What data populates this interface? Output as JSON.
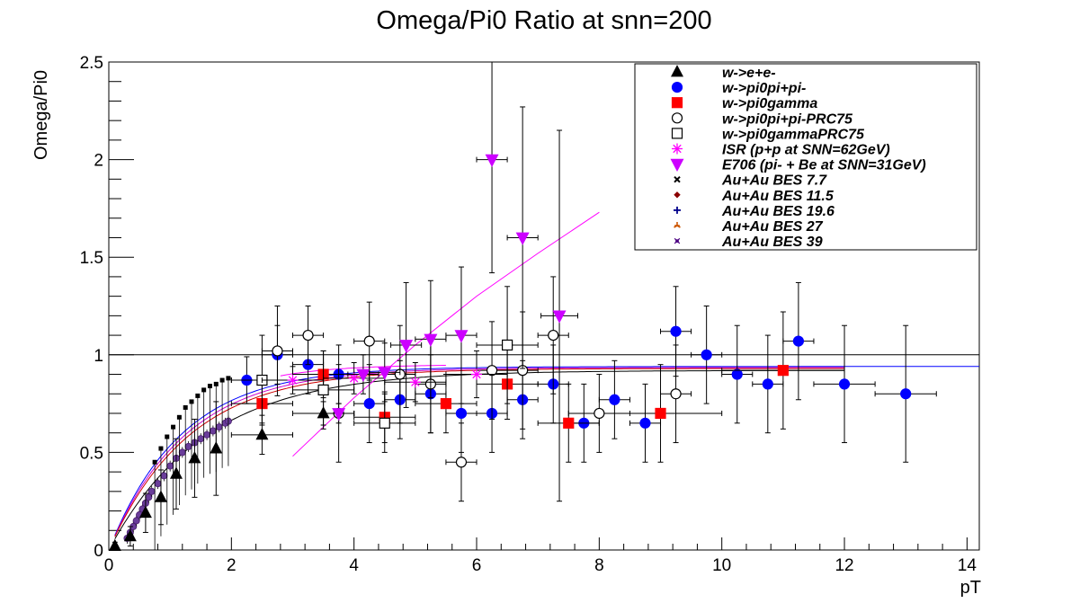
{
  "chart_data": {
    "type": "scatter",
    "title": "Omega/Pi0 Ratio at   snn=200",
    "xlabel": "pT",
    "ylabel": "Omega/Pi0",
    "xlim": [
      0,
      14.2
    ],
    "ylim": [
      0,
      2.5
    ],
    "x_ticks": [
      "0",
      "2",
      "4",
      "6",
      "8",
      "10",
      "12",
      "14"
    ],
    "y_ticks": [
      "0",
      "0.5",
      "1",
      "1.5",
      "2",
      "2.5"
    ],
    "grid": false,
    "legend_position": "top-right",
    "reference_line": {
      "y": 1
    },
    "series": [
      {
        "name": "w->e+e-",
        "marker": "triangle-up",
        "color": "#000000",
        "filled": true,
        "points": [
          {
            "x": 0.1,
            "y": 0.02,
            "ey": 0.02
          },
          {
            "x": 0.35,
            "y": 0.07,
            "ey": 0.05
          },
          {
            "x": 0.6,
            "y": 0.19,
            "ey": 0.1
          },
          {
            "x": 0.85,
            "y": 0.27,
            "ey": 0.14
          },
          {
            "x": 1.1,
            "y": 0.39,
            "ey": 0.18
          },
          {
            "x": 1.4,
            "y": 0.47,
            "ey": 0.2
          },
          {
            "x": 1.75,
            "y": 0.52,
            "ey": 0.24
          },
          {
            "x": 2.5,
            "y": 0.59,
            "ey": 0.1,
            "ex": 0.5
          },
          {
            "x": 3.5,
            "y": 0.7,
            "ey": 0.06,
            "ex": 0.5
          }
        ]
      },
      {
        "name": "w->pi0pi+pi-",
        "marker": "circle",
        "color": "#0000ff",
        "filled": true,
        "points": [
          {
            "x": 2.25,
            "y": 0.87,
            "ey": 0.12,
            "ex": 0.25
          },
          {
            "x": 2.75,
            "y": 1.0,
            "ey": 0.15,
            "ex": 0.25
          },
          {
            "x": 3.25,
            "y": 0.95,
            "ey": 0.15,
            "ex": 0.25
          },
          {
            "x": 3.75,
            "y": 0.9,
            "ey": 0.15,
            "ex": 0.25
          },
          {
            "x": 4.25,
            "y": 0.75,
            "ey": 0.2,
            "ex": 0.25
          },
          {
            "x": 4.75,
            "y": 0.77,
            "ey": 0.2,
            "ex": 0.25
          },
          {
            "x": 5.25,
            "y": 0.8,
            "ey": 0.2,
            "ex": 0.25
          },
          {
            "x": 5.75,
            "y": 0.7,
            "ey": 0.2,
            "ex": 0.25
          },
          {
            "x": 6.25,
            "y": 0.7,
            "ey": 0.2,
            "ex": 0.25
          },
          {
            "x": 6.75,
            "y": 0.77,
            "ey": 0.2,
            "ex": 0.25
          },
          {
            "x": 7.25,
            "y": 0.85,
            "ey": 0.2,
            "ex": 0.25
          },
          {
            "x": 7.75,
            "y": 0.65,
            "ey": 0.2,
            "ex": 0.25
          },
          {
            "x": 8.25,
            "y": 0.77,
            "ey": 0.2,
            "ex": 0.25
          },
          {
            "x": 8.75,
            "y": 0.65,
            "ey": 0.2,
            "ex": 0.25
          },
          {
            "x": 9.25,
            "y": 1.12,
            "ey": 0.23,
            "ex": 0.25
          },
          {
            "x": 9.75,
            "y": 1.0,
            "ey": 0.25,
            "ex": 0.25
          },
          {
            "x": 10.25,
            "y": 0.9,
            "ey": 0.25,
            "ex": 0.25
          },
          {
            "x": 10.75,
            "y": 0.85,
            "ey": 0.25,
            "ex": 0.25
          },
          {
            "x": 11.25,
            "y": 1.07,
            "ey": 0.3,
            "ex": 0.25
          },
          {
            "x": 12.0,
            "y": 0.85,
            "ey": 0.3,
            "ex": 0.5
          },
          {
            "x": 13.0,
            "y": 0.8,
            "ey": 0.35,
            "ex": 0.5
          }
        ]
      },
      {
        "name": "w->pi0gamma",
        "marker": "square",
        "color": "#ff0000",
        "filled": true,
        "points": [
          {
            "x": 2.5,
            "y": 0.75,
            "ey": 0.1,
            "ex": 0.5
          },
          {
            "x": 3.5,
            "y": 0.9,
            "ey": 0.12,
            "ex": 0.5
          },
          {
            "x": 4.5,
            "y": 0.68,
            "ey": 0.13,
            "ex": 0.5
          },
          {
            "x": 5.5,
            "y": 0.75,
            "ey": 0.15,
            "ex": 0.5
          },
          {
            "x": 6.5,
            "y": 0.85,
            "ey": 0.18,
            "ex": 0.5
          },
          {
            "x": 7.5,
            "y": 0.65,
            "ey": 0.2,
            "ex": 0.5
          },
          {
            "x": 9.0,
            "y": 0.7,
            "ey": 0.25,
            "ex": 1.0
          },
          {
            "x": 11.0,
            "y": 0.92,
            "ey": 0.3,
            "ex": 1.0
          }
        ]
      },
      {
        "name": "w->pi0pi+pi-PRC75",
        "marker": "circle",
        "color": "#000000",
        "filled": false,
        "points": [
          {
            "x": 2.75,
            "y": 1.02,
            "ey": 0.23,
            "ex": 0.25
          },
          {
            "x": 3.25,
            "y": 1.1,
            "ey": 0.15,
            "ex": 0.25
          },
          {
            "x": 3.75,
            "y": 0.7,
            "ey": 0.25,
            "ex": 0.25
          },
          {
            "x": 4.25,
            "y": 1.07,
            "ey": 0.2,
            "ex": 0.25
          },
          {
            "x": 4.75,
            "y": 0.9,
            "ey": 0.25,
            "ex": 0.25
          },
          {
            "x": 5.25,
            "y": 0.85,
            "ey": 0.25,
            "ex": 0.25
          },
          {
            "x": 5.75,
            "y": 0.45,
            "ey": 0.2,
            "ex": 0.25
          },
          {
            "x": 6.25,
            "y": 0.92,
            "ey": 0.25,
            "ex": 0.25
          },
          {
            "x": 6.75,
            "y": 0.92,
            "ey": 0.3,
            "ex": 0.25
          },
          {
            "x": 7.25,
            "y": 1.1,
            "ey": 0.3,
            "ex": 0.25
          },
          {
            "x": 8.0,
            "y": 0.7,
            "ey": 0.2,
            "ex": 0.5
          },
          {
            "x": 9.25,
            "y": 0.8,
            "ey": 0.25,
            "ex": 0.25
          }
        ]
      },
      {
        "name": "w->pi0gammaPRC75",
        "marker": "square",
        "color": "#000000",
        "filled": false,
        "points": [
          {
            "x": 2.5,
            "y": 0.87,
            "ey": 0.23,
            "ex": 0.5
          },
          {
            "x": 3.5,
            "y": 0.82,
            "ey": 0.2,
            "ex": 0.5
          },
          {
            "x": 4.5,
            "y": 0.65,
            "ey": 0.15,
            "ex": 0.5
          },
          {
            "x": 6.5,
            "y": 1.05,
            "ey": 0.3,
            "ex": 0.5
          }
        ]
      },
      {
        "name": "ISR (p+p at SNN=62GeV)",
        "marker": "asterisk",
        "color": "#ff00ff",
        "filled": false,
        "points": [
          {
            "x": 3.0,
            "y": 0.87,
            "ey": 0.07,
            "ex": 0.5
          },
          {
            "x": 4.0,
            "y": 0.88,
            "ey": 0.08,
            "ex": 0.5
          },
          {
            "x": 5.0,
            "y": 0.86,
            "ey": 0.1,
            "ex": 0.5
          },
          {
            "x": 6.0,
            "y": 0.9,
            "ey": 0.12,
            "ex": 0.5
          }
        ]
      },
      {
        "name": "E706 (pi- + Be at SNN=31GeV)",
        "marker": "triangle-down",
        "color": "#cc00ff",
        "filled": true,
        "points": [
          {
            "x": 3.75,
            "y": 0.7,
            "ey": 0.05,
            "ex": 0.25
          },
          {
            "x": 4.15,
            "y": 0.9,
            "ey": 0.1,
            "ex": 0.25
          },
          {
            "x": 4.5,
            "y": 0.91,
            "ey": 0.15,
            "ex": 0.25
          },
          {
            "x": 4.85,
            "y": 1.05,
            "ey": 0.32,
            "ex": 0.25
          },
          {
            "x": 5.25,
            "y": 1.08,
            "ey": 0.3,
            "ex": 0.25
          },
          {
            "x": 5.75,
            "y": 1.1,
            "ey": 0.35,
            "ex": 0.25
          },
          {
            "x": 6.25,
            "y": 2.0,
            "ey": 0.58,
            "ex": 0.25
          },
          {
            "x": 6.75,
            "y": 1.6,
            "ey": 0.67,
            "ex": 0.25
          },
          {
            "x": 7.35,
            "y": 1.2,
            "ey": 0.95,
            "ex": 0.3
          }
        ]
      },
      {
        "name": "Au+Au BES 7.7",
        "marker": "x",
        "color": "#000000",
        "points": []
      },
      {
        "name": "Au+Au BES 11.5",
        "marker": "diamond",
        "color": "#8b0000",
        "points": []
      },
      {
        "name": "Au+Au BES 19.6",
        "marker": "plus",
        "color": "#00008b",
        "points": []
      },
      {
        "name": "Au+Au BES 27",
        "marker": "star",
        "color": "#cc5500",
        "points": []
      },
      {
        "name": "Au+Au BES 39",
        "marker": "cross",
        "color": "#4b0082",
        "points": []
      }
    ],
    "bes_points": [
      {
        "x": 0.3,
        "y": 0.06
      },
      {
        "x": 0.35,
        "y": 0.09
      },
      {
        "x": 0.4,
        "y": 0.12
      },
      {
        "x": 0.45,
        "y": 0.15
      },
      {
        "x": 0.5,
        "y": 0.18
      },
      {
        "x": 0.55,
        "y": 0.21
      },
      {
        "x": 0.6,
        "y": 0.24
      },
      {
        "x": 0.65,
        "y": 0.27
      },
      {
        "x": 0.7,
        "y": 0.3
      },
      {
        "x": 0.8,
        "y": 0.34
      },
      {
        "x": 0.9,
        "y": 0.38
      },
      {
        "x": 1.0,
        "y": 0.43
      },
      {
        "x": 1.1,
        "y": 0.47
      },
      {
        "x": 1.2,
        "y": 0.5
      },
      {
        "x": 1.3,
        "y": 0.53
      },
      {
        "x": 1.4,
        "y": 0.55
      },
      {
        "x": 1.5,
        "y": 0.57
      },
      {
        "x": 1.6,
        "y": 0.59
      },
      {
        "x": 1.7,
        "y": 0.61
      },
      {
        "x": 1.8,
        "y": 0.63
      },
      {
        "x": 1.9,
        "y": 0.65
      },
      {
        "x": 1.95,
        "y": 0.66
      }
    ],
    "black_small_points": [
      {
        "x": 0.75,
        "y": 0.45
      },
      {
        "x": 0.85,
        "y": 0.52
      },
      {
        "x": 0.95,
        "y": 0.58
      },
      {
        "x": 1.05,
        "y": 0.63
      },
      {
        "x": 1.15,
        "y": 0.68
      },
      {
        "x": 1.25,
        "y": 0.73
      },
      {
        "x": 1.35,
        "y": 0.76
      },
      {
        "x": 1.45,
        "y": 0.79
      },
      {
        "x": 1.55,
        "y": 0.82
      },
      {
        "x": 1.65,
        "y": 0.84
      },
      {
        "x": 1.75,
        "y": 0.85
      },
      {
        "x": 1.85,
        "y": 0.87
      },
      {
        "x": 1.95,
        "y": 0.88
      }
    ],
    "fit_curves": [
      {
        "color": "#0000ff",
        "a": 0.94,
        "b": 1.9,
        "xmin": 0.1,
        "xmax": 14.2
      },
      {
        "color": "#cc00cc",
        "a": 0.935,
        "b": 2.0,
        "xmin": 0.1,
        "xmax": 12.0
      },
      {
        "color": "#cc0000",
        "a": 0.93,
        "b": 2.1,
        "xmin": 0.1,
        "xmax": 12.0
      },
      {
        "color": "#000000",
        "a": 0.92,
        "b": 2.5,
        "xmin": 0.1,
        "xmax": 12.0
      },
      {
        "color": "#ff00ff",
        "a": 0.95,
        "b": 1.6,
        "xmin": 2.8,
        "xmax": 5.5
      }
    ],
    "e706_fit": {
      "color": "#ff00ff",
      "points": [
        {
          "x": 3.0,
          "y": 0.48
        },
        {
          "x": 4.0,
          "y": 0.78
        },
        {
          "x": 5.0,
          "y": 1.05
        },
        {
          "x": 6.0,
          "y": 1.3
        },
        {
          "x": 7.0,
          "y": 1.52
        },
        {
          "x": 8.0,
          "y": 1.73
        }
      ]
    }
  }
}
